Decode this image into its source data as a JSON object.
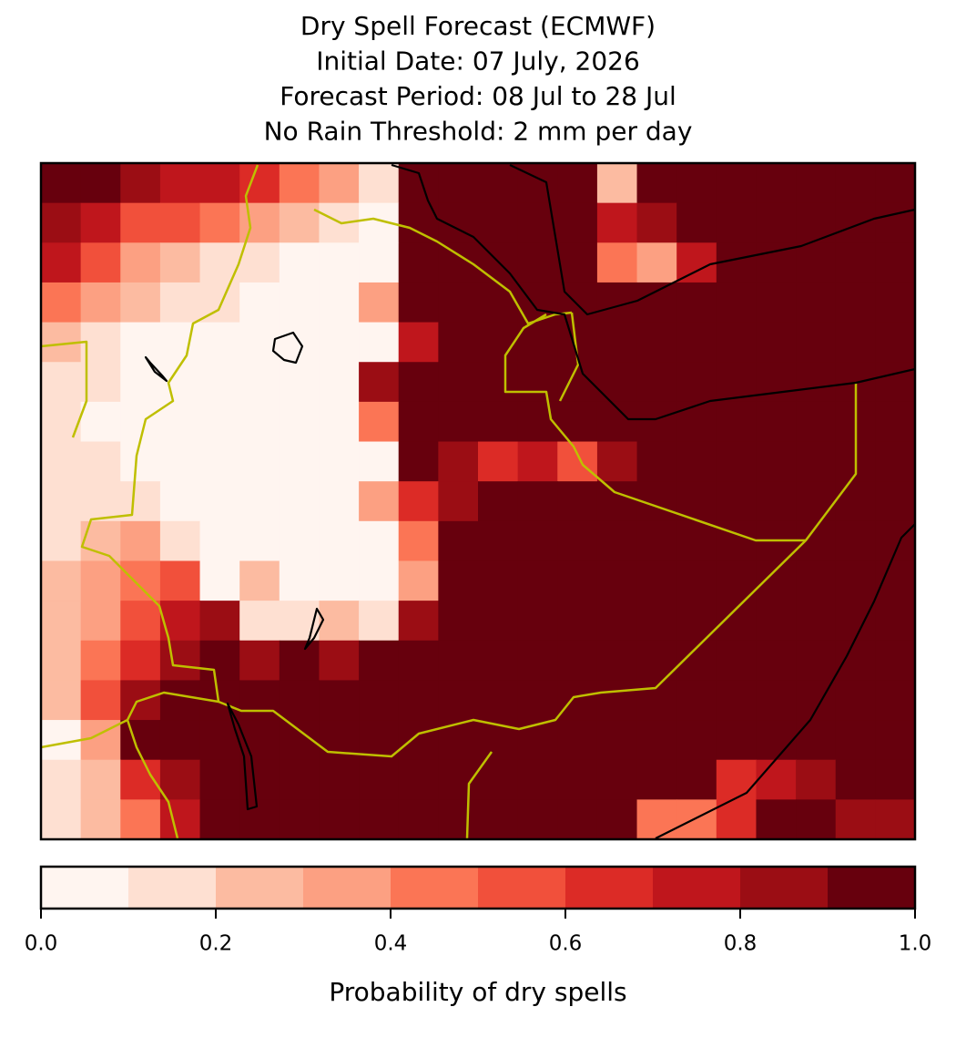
{
  "chart_data": {
    "type": "heatmap",
    "title_lines": [
      "Dry Spell Forecast (ECMWF)",
      "Initial Date: 07 July, 2026",
      "Forecast Period: 08 Jul to 28 Jul",
      "No Rain Threshold: 2 mm per day"
    ],
    "colorbar_label": "Probability of dry spells",
    "levels": [
      0,
      0.1,
      0.2,
      0.3,
      0.4,
      0.5,
      0.6,
      0.7,
      0.8,
      0.9,
      1
    ],
    "colors": [
      "#fff5f0",
      "#fee0d2",
      "#fcbba1",
      "#fca082",
      "#fb7555",
      "#f1503b",
      "#dc2b26",
      "#bf161c",
      "#9b0d14",
      "#67000d"
    ],
    "clim": [
      0,
      1
    ],
    "cticks": [
      {
        "value": 0,
        "label": "0.0"
      },
      0.2,
      0.4,
      0.6,
      0.8,
      {
        "value": 1,
        "label": "1.0"
      }
    ],
    "values": [
      [
        0.95,
        0.95,
        0.85,
        0.75,
        0.75,
        0.65,
        0.45,
        0.35,
        0.15,
        0.95,
        0.95,
        0.95,
        0.95,
        0.95,
        0.25,
        0.95,
        0.95,
        0.95,
        0.95,
        0.95,
        0.95,
        0.95
      ],
      [
        0.85,
        0.75,
        0.55,
        0.55,
        0.45,
        0.35,
        0.25,
        0.15,
        0.05,
        0.95,
        0.95,
        0.95,
        0.95,
        0.95,
        0.75,
        0.85,
        0.95,
        0.95,
        0.95,
        0.95,
        0.95,
        0.95
      ],
      [
        0.75,
        0.55,
        0.35,
        0.25,
        0.15,
        0.15,
        0.05,
        0.05,
        0.05,
        0.95,
        0.95,
        0.95,
        0.95,
        0.95,
        0.45,
        0.35,
        0.75,
        0.95,
        0.95,
        0.95,
        0.95,
        0.95
      ],
      [
        0.45,
        0.35,
        0.25,
        0.15,
        0.15,
        0.05,
        0.05,
        0.05,
        0.35,
        0.95,
        0.95,
        0.95,
        0.95,
        0.95,
        0.95,
        0.95,
        0.95,
        0.95,
        0.95,
        0.95,
        0.95,
        0.95
      ],
      [
        0.25,
        0.15,
        0.05,
        0.05,
        0.05,
        0.05,
        0.05,
        0.05,
        0.05,
        0.75,
        0.95,
        0.95,
        0.95,
        0.95,
        0.95,
        0.95,
        0.95,
        0.95,
        0.95,
        0.95,
        0.95,
        0.95
      ],
      [
        0.15,
        0.15,
        0.05,
        0.05,
        0.05,
        0.05,
        0.05,
        0.05,
        0.85,
        0.95,
        0.95,
        0.95,
        0.95,
        0.95,
        0.95,
        0.95,
        0.95,
        0.95,
        0.95,
        0.95,
        0.95,
        0.95
      ],
      [
        0.15,
        0.05,
        0.05,
        0.05,
        0.05,
        0.05,
        0.05,
        0.05,
        0.45,
        0.95,
        0.95,
        0.95,
        0.95,
        0.95,
        0.95,
        0.95,
        0.95,
        0.95,
        0.95,
        0.95,
        0.95,
        0.95
      ],
      [
        0.15,
        0.15,
        0.05,
        0.05,
        0.05,
        0.05,
        0.05,
        0.05,
        0.05,
        0.95,
        0.85,
        0.65,
        0.75,
        0.55,
        0.85,
        0.95,
        0.95,
        0.95,
        0.95,
        0.95,
        0.95,
        0.95
      ],
      [
        0.15,
        0.15,
        0.15,
        0.05,
        0.05,
        0.05,
        0.05,
        0.05,
        0.35,
        0.65,
        0.85,
        0.95,
        0.95,
        0.95,
        0.95,
        0.95,
        0.95,
        0.95,
        0.95,
        0.95,
        0.95,
        0.95
      ],
      [
        0.15,
        0.25,
        0.35,
        0.15,
        0.05,
        0.05,
        0.05,
        0.05,
        0.05,
        0.45,
        0.95,
        0.95,
        0.95,
        0.95,
        0.95,
        0.95,
        0.95,
        0.95,
        0.95,
        0.95,
        0.95,
        0.95
      ],
      [
        0.25,
        0.35,
        0.45,
        0.55,
        0.05,
        0.25,
        0.05,
        0.05,
        0.05,
        0.35,
        0.95,
        0.95,
        0.95,
        0.95,
        0.95,
        0.95,
        0.95,
        0.95,
        0.95,
        0.95,
        0.95,
        0.95
      ],
      [
        0.25,
        0.35,
        0.55,
        0.75,
        0.85,
        0.15,
        0.15,
        0.25,
        0.15,
        0.85,
        0.95,
        0.95,
        0.95,
        0.95,
        0.95,
        0.95,
        0.95,
        0.95,
        0.95,
        0.95,
        0.95,
        0.95
      ],
      [
        0.25,
        0.45,
        0.65,
        0.85,
        0.95,
        0.85,
        0.95,
        0.85,
        0.95,
        0.95,
        0.95,
        0.95,
        0.95,
        0.95,
        0.95,
        0.95,
        0.95,
        0.95,
        0.95,
        0.95,
        0.95,
        0.95
      ],
      [
        0.25,
        0.55,
        0.85,
        0.95,
        0.95,
        0.95,
        0.95,
        0.95,
        0.95,
        0.95,
        0.95,
        0.95,
        0.95,
        0.95,
        0.95,
        0.95,
        0.95,
        0.95,
        0.95,
        0.95,
        0.95,
        0.95
      ],
      [
        0.05,
        0.35,
        0.95,
        0.95,
        0.95,
        0.95,
        0.95,
        0.95,
        0.95,
        0.95,
        0.95,
        0.95,
        0.95,
        0.95,
        0.95,
        0.95,
        0.95,
        0.95,
        0.95,
        0.95,
        0.95,
        0.95
      ],
      [
        0.15,
        0.25,
        0.65,
        0.85,
        0.95,
        0.95,
        0.95,
        0.95,
        0.95,
        0.95,
        0.95,
        0.95,
        0.95,
        0.95,
        0.95,
        0.95,
        0.95,
        0.65,
        0.75,
        0.85,
        0.95,
        0.95
      ],
      [
        0.15,
        0.25,
        0.45,
        0.75,
        0.95,
        0.95,
        0.95,
        0.95,
        0.95,
        0.95,
        0.95,
        0.95,
        0.95,
        0.95,
        0.95,
        0.45,
        0.45,
        0.65,
        0.95,
        0.95,
        0.85,
        0.85
      ]
    ]
  }
}
